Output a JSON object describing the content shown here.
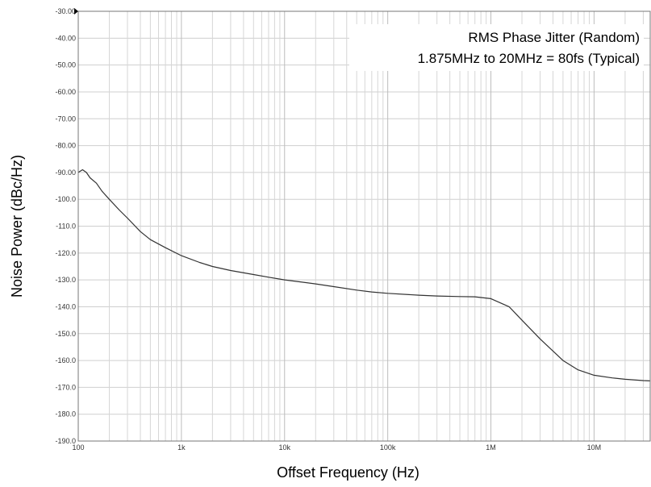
{
  "chart_data": {
    "type": "line",
    "title": "",
    "xlabel": "Offset Frequency (Hz)",
    "ylabel": "Noise Power (dBc/Hz)",
    "x_scale": "log",
    "xlim": [
      100,
      35000000
    ],
    "ylim": [
      -190,
      -30
    ],
    "grid": true,
    "x_tick_labels": [
      "100",
      "1k",
      "10k",
      "100k",
      "1M",
      "10M"
    ],
    "x_tick_values": [
      100,
      1000,
      10000,
      100000,
      1000000,
      10000000
    ],
    "y_tick_labels": [
      "-30.00",
      "-40.00",
      "-50.00",
      "-60.00",
      "-70.00",
      "-80.00",
      "-90.00",
      "-100.0",
      "-110.0",
      "-120.0",
      "-130.0",
      "-140.0",
      "-150.0",
      "-160.0",
      "-170.0",
      "-180.0",
      "-190.0"
    ],
    "y_tick_values": [
      -30,
      -40,
      -50,
      -60,
      -70,
      -80,
      -90,
      -100,
      -110,
      -120,
      -130,
      -140,
      -150,
      -160,
      -170,
      -180,
      -190
    ],
    "annotations": [
      "RMS Phase Jitter (Random)",
      "1.875MHz to 20MHz = 80fs (Typical)"
    ],
    "series": [
      {
        "x": [
          100,
          110,
          120,
          130,
          150,
          170,
          200,
          250,
          300,
          400,
          500,
          700,
          1000,
          1500,
          2000,
          3000,
          5000,
          7000,
          10000,
          20000,
          30000,
          50000,
          70000,
          100000,
          200000,
          300000,
          500000,
          700000,
          1000000,
          1500000,
          2000000,
          3000000,
          5000000,
          7000000,
          10000000,
          15000000,
          20000000,
          30000000,
          35000000
        ],
        "y": [
          -90,
          -89,
          -90,
          -92,
          -94,
          -97,
          -100,
          -104,
          -107,
          -112,
          -115,
          -118,
          -121,
          -123.5,
          -125,
          -126.5,
          -128,
          -129,
          -130,
          -131.5,
          -132.5,
          -133.8,
          -134.5,
          -135,
          -135.7,
          -136,
          -136.2,
          -136.3,
          -137,
          -140,
          -145,
          -152,
          -160,
          -163.5,
          -165.5,
          -166.5,
          -167,
          -167.5,
          -167.6
        ]
      }
    ]
  }
}
